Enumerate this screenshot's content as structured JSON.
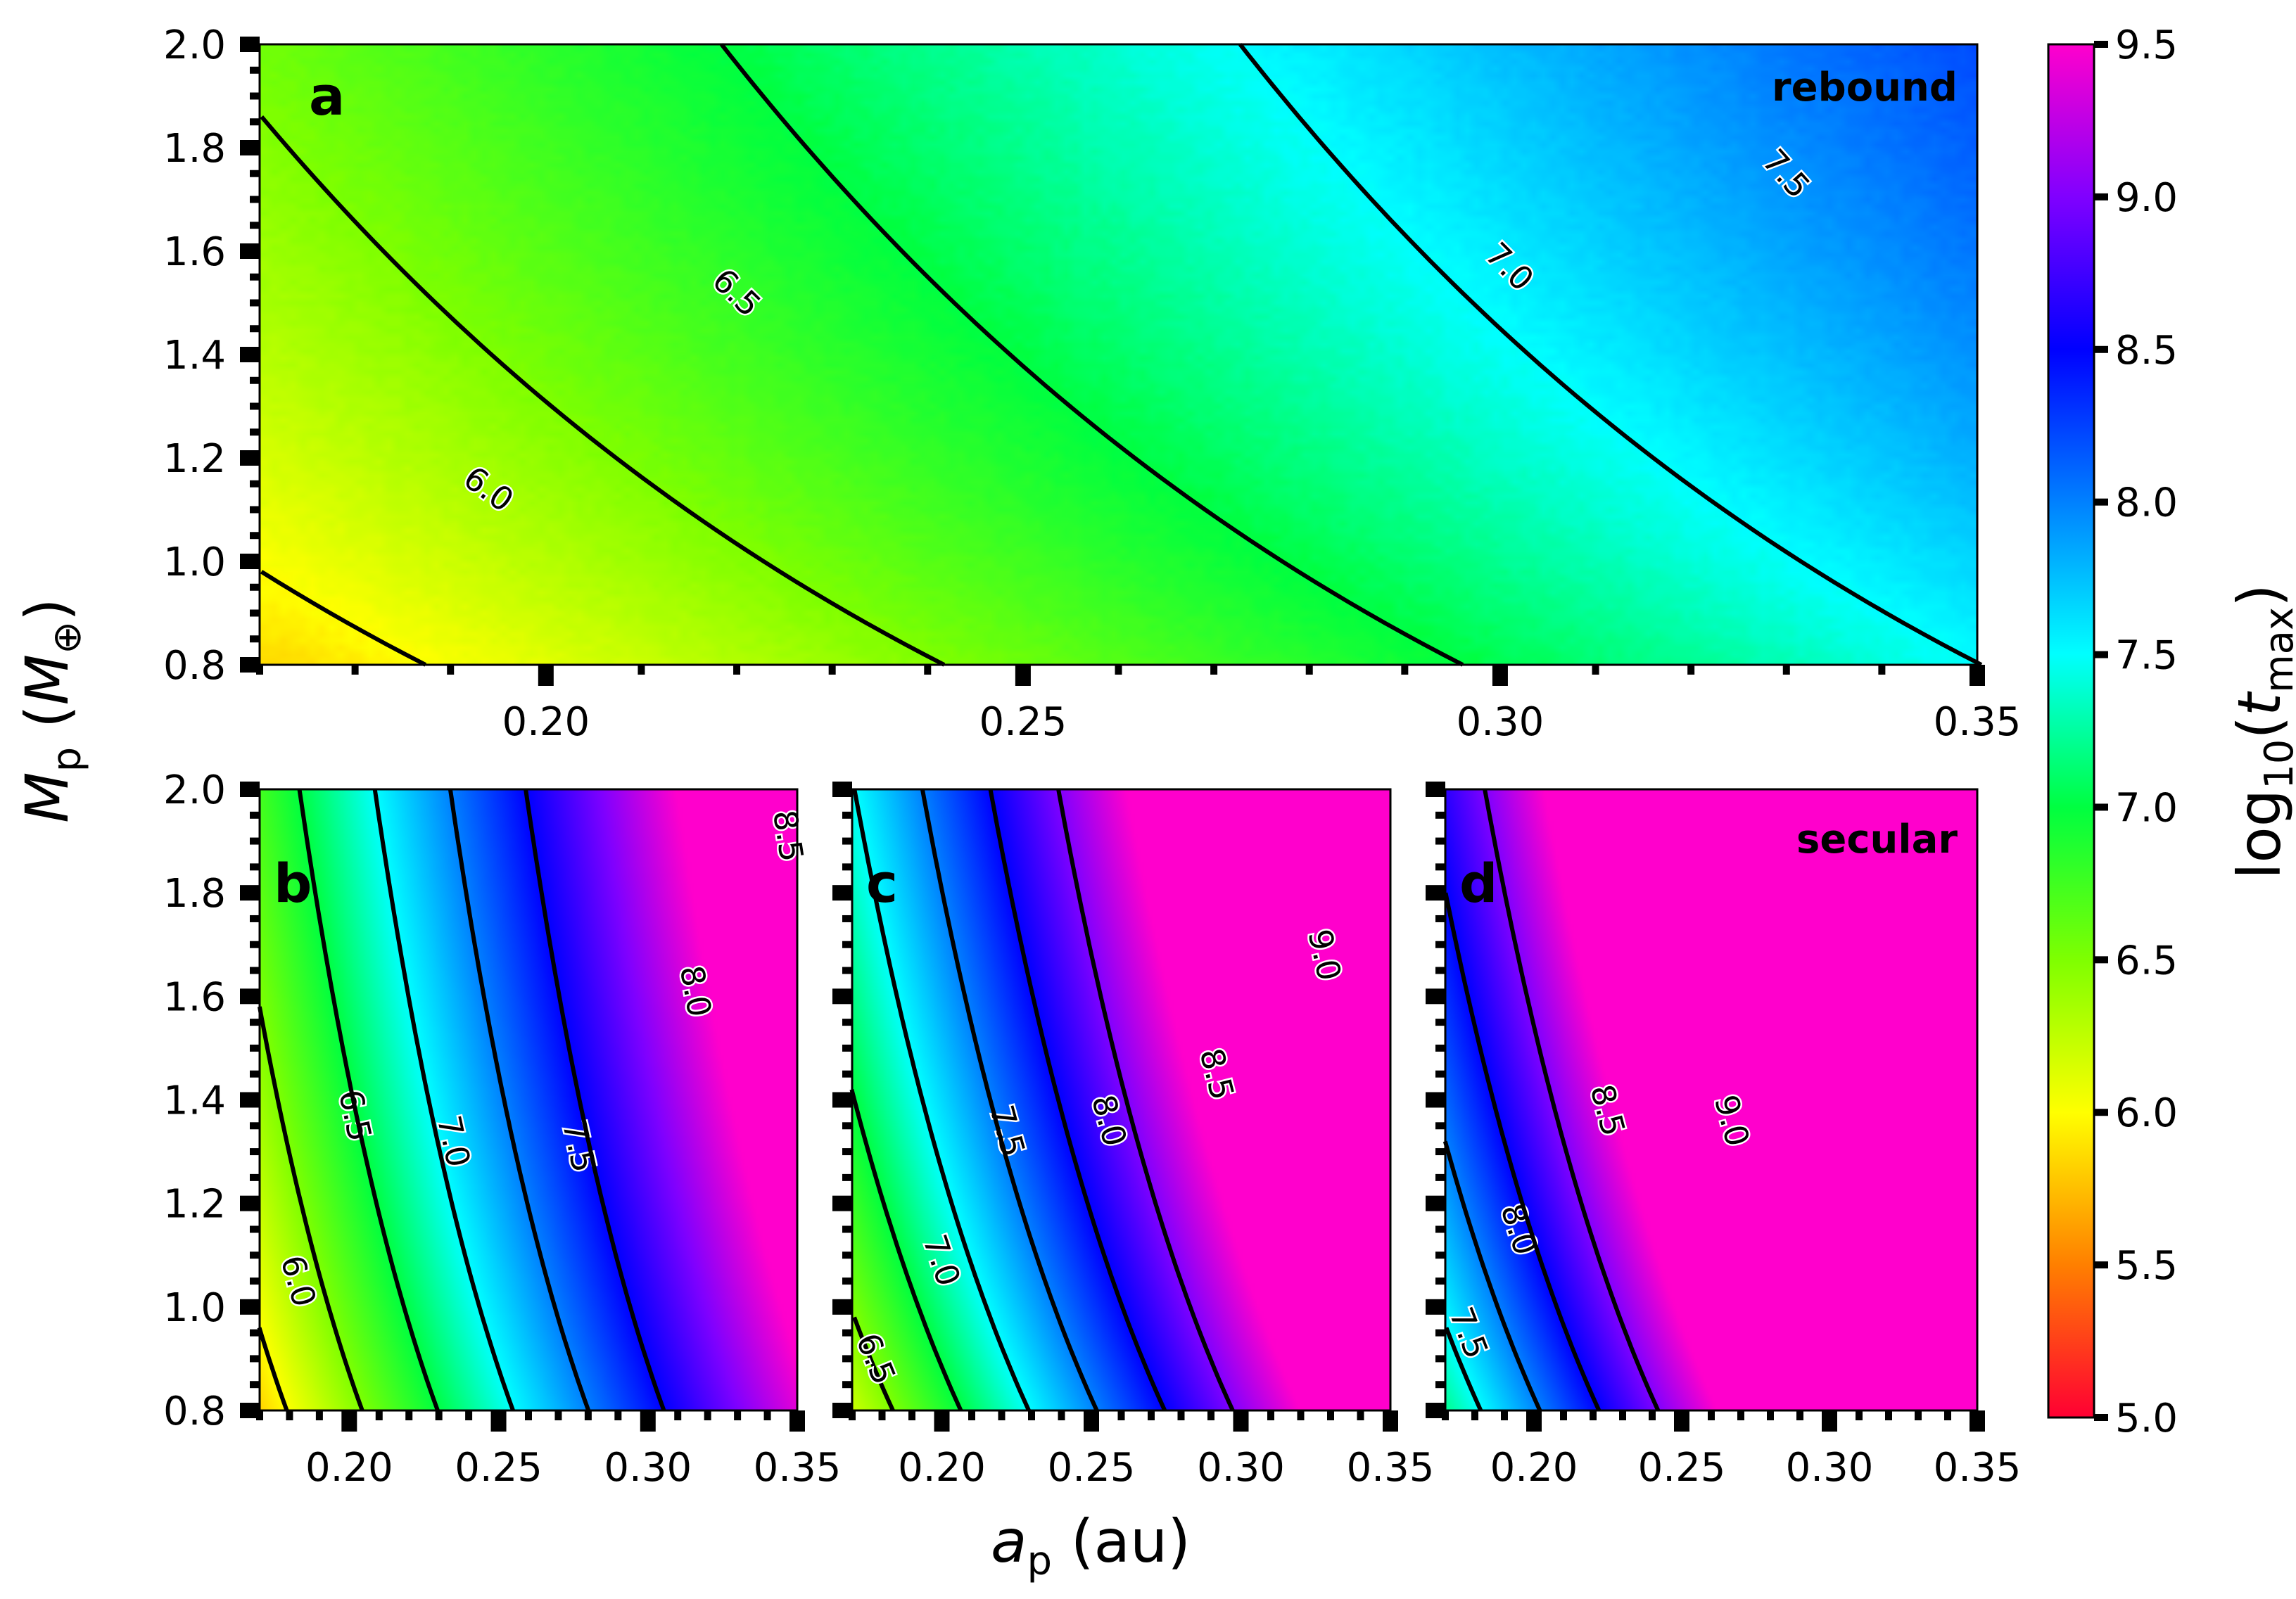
{
  "chart_data": {
    "type": "heatmap",
    "xlabel": "a_p (au)",
    "ylabel": "M_p (M_⊕)",
    "xlim": [
      0.17,
      0.35
    ],
    "ylim": [
      0.8,
      2.0
    ],
    "x_ticks": [
      "0.20",
      "0.25",
      "0.30",
      "0.35"
    ],
    "y_ticks": [
      "0.8",
      "1.0",
      "1.2",
      "1.4",
      "1.6",
      "1.8",
      "2.0"
    ],
    "colorbar": {
      "label": "log10(t_max)",
      "range": [
        5.0,
        9.5
      ],
      "ticks": [
        "5.0",
        "5.5",
        "6.0",
        "6.5",
        "7.0",
        "7.5",
        "8.0",
        "8.5",
        "9.0",
        "9.5"
      ]
    },
    "panels": [
      {
        "id": "a",
        "letter": "a",
        "tag": "rebound",
        "field": {
          "c0": 5.84,
          "cx": 9.2,
          "cm": 0.78,
          "noise": true
        },
        "contours": [
          {
            "level": 6.0,
            "label": "6.0",
            "label_at": [
              0.194,
              1.14
            ]
          },
          {
            "level": 6.5,
            "label": "6.5",
            "label_at": [
              0.22,
              1.52
            ]
          },
          {
            "level": 7.0,
            "label": "7.0",
            "label_at": [
              0.301,
              1.57
            ]
          },
          {
            "level": 7.5,
            "label": "7.5",
            "label_at": [
              0.33,
              1.75
            ]
          }
        ]
      },
      {
        "id": "b",
        "letter": "b",
        "tag": "",
        "field": {
          "c0": 5.82,
          "cx": 19.8,
          "cm": 1.0,
          "noise": false
        },
        "contours": [
          {
            "level": 6.0,
            "label": "6.0",
            "label_at": [
              0.183,
              1.05
            ]
          },
          {
            "level": 6.5,
            "label": "6.5",
            "label_at": [
              0.202,
              1.37
            ]
          },
          {
            "level": 7.0,
            "label": "7.0",
            "label_at": [
              0.235,
              1.32
            ]
          },
          {
            "level": 7.5,
            "label": "7.5",
            "label_at": [
              0.277,
              1.31
            ]
          },
          {
            "level": 8.0,
            "label": "8.0",
            "label_at": [
              0.316,
              1.61
            ]
          },
          {
            "level": 8.5,
            "label": "8.5",
            "label_at": [
              0.347,
              1.91
            ]
          }
        ]
      },
      {
        "id": "c",
        "letter": "c",
        "tag": "",
        "field": {
          "c0": 6.2,
          "cx": 22.0,
          "cm": 1.4,
          "noise": false
        },
        "contours": [
          {
            "level": 6.5,
            "label": "6.5",
            "label_at": [
              0.178,
              0.9
            ]
          },
          {
            "level": 7.0,
            "label": "7.0",
            "label_at": [
              0.2,
              1.09
            ]
          },
          {
            "level": 7.5,
            "label": "7.5",
            "label_at": [
              0.222,
              1.34
            ]
          },
          {
            "level": 8.0,
            "label": "8.0",
            "label_at": [
              0.256,
              1.36
            ]
          },
          {
            "level": 8.5,
            "label": "8.5",
            "label_at": [
              0.292,
              1.45
            ]
          },
          {
            "level": 9.0,
            "label": "9.0",
            "label_at": [
              0.328,
              1.68
            ]
          }
        ]
      },
      {
        "id": "d",
        "letter": "d",
        "tag": "secular",
        "field": {
          "c0": 7.2,
          "cx": 25.0,
          "cm": 1.6,
          "noise": false
        },
        "contours": [
          {
            "level": 7.5,
            "label": "7.5",
            "label_at": [
              0.178,
              0.95
            ]
          },
          {
            "level": 8.0,
            "label": "8.0",
            "label_at": [
              0.195,
              1.15
            ]
          },
          {
            "level": 8.5,
            "label": "8.5",
            "label_at": [
              0.225,
              1.38
            ]
          },
          {
            "level": 9.0,
            "label": "9.0",
            "label_at": [
              0.267,
              1.36
            ]
          }
        ]
      }
    ]
  },
  "text": {
    "xlabel_main": "a",
    "xlabel_sub": "p",
    "xlabel_unit": " (au)",
    "ylabel_main": "M",
    "ylabel_sub": "p",
    "ylabel_open": " (",
    "ylabel_m": "M",
    "ylabel_msub": "⊕",
    "ylabel_close": ")",
    "cbar_log": "log",
    "cbar_base": "10",
    "cbar_open": "(",
    "cbar_t": "t",
    "cbar_tsub": "max",
    "cbar_close": ")"
  }
}
